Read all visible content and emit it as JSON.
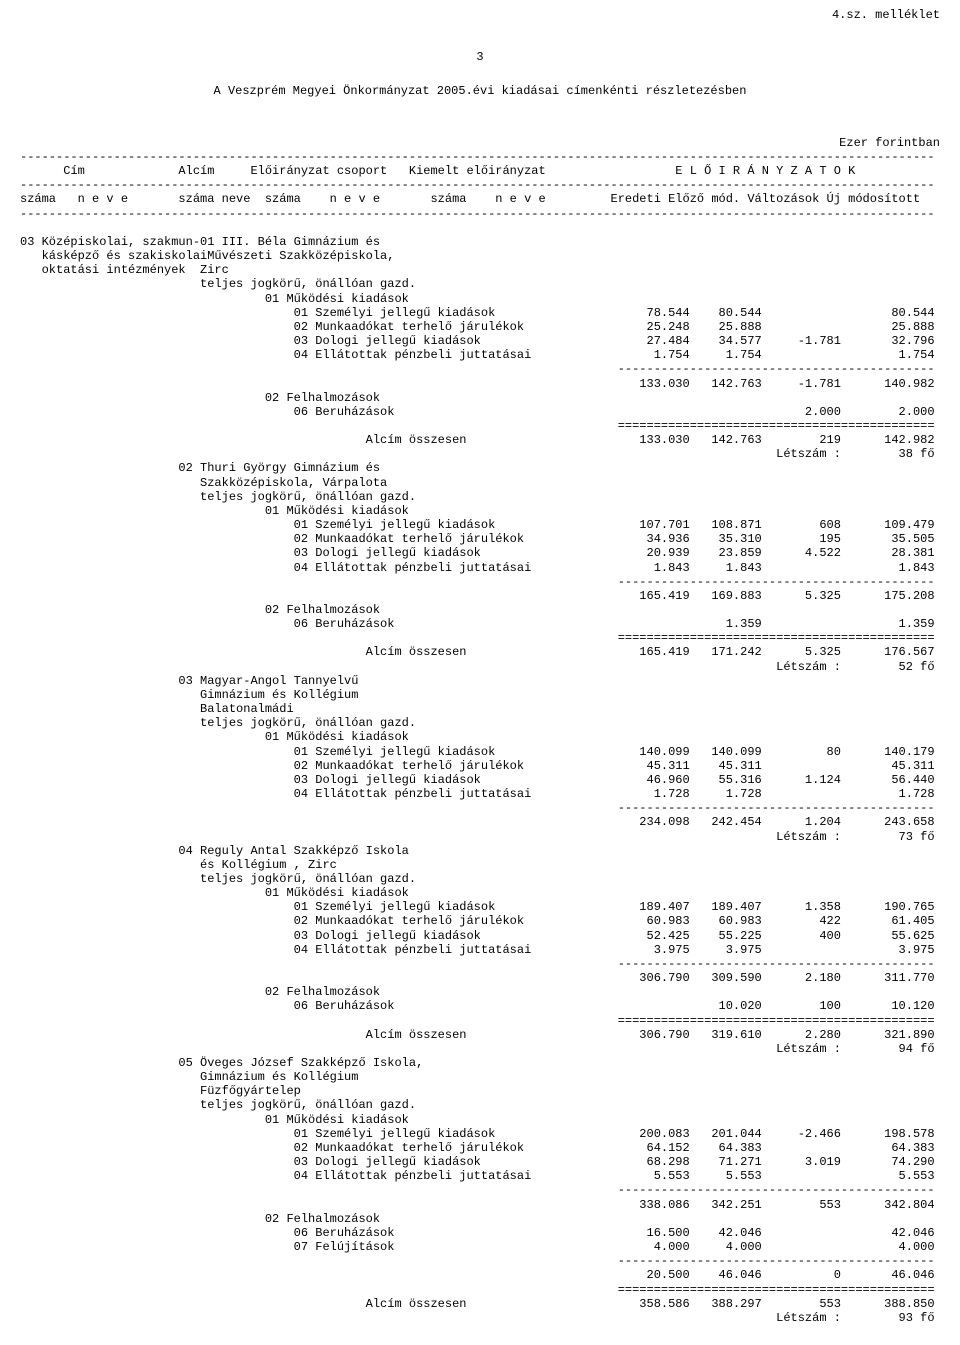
{
  "attachment_label": "4.sz. melléklet",
  "page_number": "3",
  "title": "A Veszprém Megyei Önkormányzat 2005.évi kiadásai címenkénti részletezésben",
  "unit_label": "Ezer forintban",
  "header": {
    "row1": {
      "cim": "Cím",
      "alcim": "Alcím",
      "el_csoport": "Előirányzat csoport",
      "kiemelt": "Kiemelt előirányzat",
      "eloiranyzatok": "E L Ő I R Á N Y Z A T O K"
    },
    "row2": {
      "szama": "száma",
      "neve": "n e v e",
      "neve2": "neve",
      "eredeti": "Eredeti",
      "elozo": "Előző mód.",
      "valt": "Változások",
      "uj": "Új módosított"
    }
  },
  "cim": {
    "szam": "03",
    "nev1": "Középiskolai, szakmun-",
    "nev2": "kásképző és szakiskolai",
    "nev3": "oktatási intézmények"
  },
  "alcim01": {
    "szam": "01",
    "nev1": "III. Béla Gimnázium és",
    "nev2": "Művészeti Szakközépiskola,",
    "nev3": "Zirc",
    "nev4": "teljes jogkörű, önállóan gazd.",
    "g01": "01 Működési kiadások",
    "r01": {
      "label": "01 Személyi jellegű kiadások",
      "c1": "78.544",
      "c2": "80.544",
      "c3": "",
      "c4": "80.544"
    },
    "r02": {
      "label": "02 Munkaadókat terhelő járulékok",
      "c1": "25.248",
      "c2": "25.888",
      "c3": "",
      "c4": "25.888"
    },
    "r03": {
      "label": "03 Dologi jellegű kiadások",
      "c1": "27.484",
      "c2": "34.577",
      "c3": "-1.781",
      "c4": "32.796"
    },
    "r04": {
      "label": "04 Ellátottak pénzbeli juttatásai",
      "c1": "1.754",
      "c2": "1.754",
      "c3": "",
      "c4": "1.754"
    },
    "sub1": {
      "c1": "133.030",
      "c2": "142.763",
      "c3": "-1.781",
      "c4": "140.982"
    },
    "g02": "02 Felhalmozások",
    "r06": {
      "label": "06 Beruházások",
      "c1": "",
      "c2": "",
      "c3": "2.000",
      "c4": "2.000"
    },
    "total": {
      "label": "Alcím összesen",
      "c1": "133.030",
      "c2": "142.763",
      "c3": "219",
      "c4": "142.982"
    },
    "letszam": {
      "label": "Létszám :",
      "val": "38 fő"
    }
  },
  "alcim02": {
    "szam": "02",
    "nev1": "Thuri György Gimnázium és",
    "nev2": "Szakközépiskola, Várpalota",
    "nev3": "teljes jogkörű, önállóan gazd.",
    "g01": "01 Működési kiadások",
    "r01": {
      "label": "01 Személyi jellegű kiadások",
      "c1": "107.701",
      "c2": "108.871",
      "c3": "608",
      "c4": "109.479"
    },
    "r02": {
      "label": "02 Munkaadókat terhelő járulékok",
      "c1": "34.936",
      "c2": "35.310",
      "c3": "195",
      "c4": "35.505"
    },
    "r03": {
      "label": "03 Dologi jellegű kiadások",
      "c1": "20.939",
      "c2": "23.859",
      "c3": "4.522",
      "c4": "28.381"
    },
    "r04": {
      "label": "04 Ellátottak pénzbeli juttatásai",
      "c1": "1.843",
      "c2": "1.843",
      "c3": "",
      "c4": "1.843"
    },
    "sub1": {
      "c1": "165.419",
      "c2": "169.883",
      "c3": "5.325",
      "c4": "175.208"
    },
    "g02": "02 Felhalmozások",
    "r06": {
      "label": "06 Beruházások",
      "c1": "",
      "c2": "1.359",
      "c3": "",
      "c4": "1.359"
    },
    "total": {
      "label": "Alcím összesen",
      "c1": "165.419",
      "c2": "171.242",
      "c3": "5.325",
      "c4": "176.567"
    },
    "letszam": {
      "label": "Létszám :",
      "val": "52 fő"
    }
  },
  "alcim03": {
    "szam": "03",
    "nev1": "Magyar-Angol Tannyelvű",
    "nev2": "Gimnázium és Kollégium",
    "nev3": "Balatonalmádi",
    "nev4": "teljes jogkörű, önállóan gazd.",
    "g01": "01 Működési kiadások",
    "r01": {
      "label": "01 Személyi jellegű kiadások",
      "c1": "140.099",
      "c2": "140.099",
      "c3": "80",
      "c4": "140.179"
    },
    "r02": {
      "label": "02 Munkaadókat terhelő járulékok",
      "c1": "45.311",
      "c2": "45.311",
      "c3": "",
      "c4": "45.311"
    },
    "r03": {
      "label": "03 Dologi jellegű kiadások",
      "c1": "46.960",
      "c2": "55.316",
      "c3": "1.124",
      "c4": "56.440"
    },
    "r04": {
      "label": "04 Ellátottak pénzbeli juttatásai",
      "c1": "1.728",
      "c2": "1.728",
      "c3": "",
      "c4": "1.728"
    },
    "sub1": {
      "c1": "234.098",
      "c2": "242.454",
      "c3": "1.204",
      "c4": "243.658"
    },
    "letszam": {
      "label": "Létszám :",
      "val": "73 fő"
    }
  },
  "alcim04": {
    "szam": "04",
    "nev1": "Reguly Antal Szakképző Iskola",
    "nev2": "és Kollégium , Zirc",
    "nev3": "teljes jogkörű, önállóan gazd.",
    "g01": "01 Működési kiadások",
    "r01": {
      "label": "01 Személyi jellegű kiadások",
      "c1": "189.407",
      "c2": "189.407",
      "c3": "1.358",
      "c4": "190.765"
    },
    "r02": {
      "label": "02 Munkaadókat terhelő járulékok",
      "c1": "60.983",
      "c2": "60.983",
      "c3": "422",
      "c4": "61.405"
    },
    "r03": {
      "label": "03 Dologi jellegű kiadások",
      "c1": "52.425",
      "c2": "55.225",
      "c3": "400",
      "c4": "55.625"
    },
    "r04": {
      "label": "04 Ellátottak pénzbeli juttatásai",
      "c1": "3.975",
      "c2": "3.975",
      "c3": "",
      "c4": "3.975"
    },
    "sub1": {
      "c1": "306.790",
      "c2": "309.590",
      "c3": "2.180",
      "c4": "311.770"
    },
    "g02": "02 Felhalmozások",
    "r06": {
      "label": "06 Beruházások",
      "c1": "",
      "c2": "10.020",
      "c3": "100",
      "c4": "10.120"
    },
    "total": {
      "label": "Alcím összesen",
      "c1": "306.790",
      "c2": "319.610",
      "c3": "2.280",
      "c4": "321.890"
    },
    "letszam": {
      "label": "Létszám :",
      "val": "94 fő"
    }
  },
  "alcim05": {
    "szam": "05",
    "nev1": "Öveges József Szakképző Iskola,",
    "nev2": "Gimnázium és Kollégium",
    "nev3": "Füzfőgyártelep",
    "nev4": "teljes jogkörű, önállóan gazd.",
    "g01": "01 Működési kiadások",
    "r01": {
      "label": "01 Személyi jellegű kiadások",
      "c1": "200.083",
      "c2": "201.044",
      "c3": "-2.466",
      "c4": "198.578"
    },
    "r02": {
      "label": "02 Munkaadókat terhelő járulékok",
      "c1": "64.152",
      "c2": "64.383",
      "c3": "",
      "c4": "64.383"
    },
    "r03": {
      "label": "03 Dologi jellegű kiadások",
      "c1": "68.298",
      "c2": "71.271",
      "c3": "3.019",
      "c4": "74.290"
    },
    "r04": {
      "label": "04 Ellátottak pénzbeli juttatásai",
      "c1": "5.553",
      "c2": "5.553",
      "c3": "",
      "c4": "5.553"
    },
    "sub1": {
      "c1": "338.086",
      "c2": "342.251",
      "c3": "553",
      "c4": "342.804"
    },
    "g02": "02 Felhalmozások",
    "r06": {
      "label": "06 Beruházások",
      "c1": "16.500",
      "c2": "42.046",
      "c3": "",
      "c4": "42.046"
    },
    "r07": {
      "label": "07 Felújítások",
      "c1": "4.000",
      "c2": "4.000",
      "c3": "",
      "c4": "4.000"
    },
    "sub2": {
      "c1": "20.500",
      "c2": "46.046",
      "c3": "0",
      "c4": "46.046"
    },
    "total": {
      "label": "Alcím összesen",
      "c1": "358.586",
      "c2": "388.297",
      "c3": "553",
      "c4": "388.850"
    },
    "letszam": {
      "label": "Létszám :",
      "val": "93 fő"
    }
  },
  "style": {
    "background_color": "#ffffff",
    "text_color": "#000000",
    "font_family": "Courier New",
    "font_size_pt": 9,
    "dash_line_char": "-",
    "double_line_char": "="
  }
}
